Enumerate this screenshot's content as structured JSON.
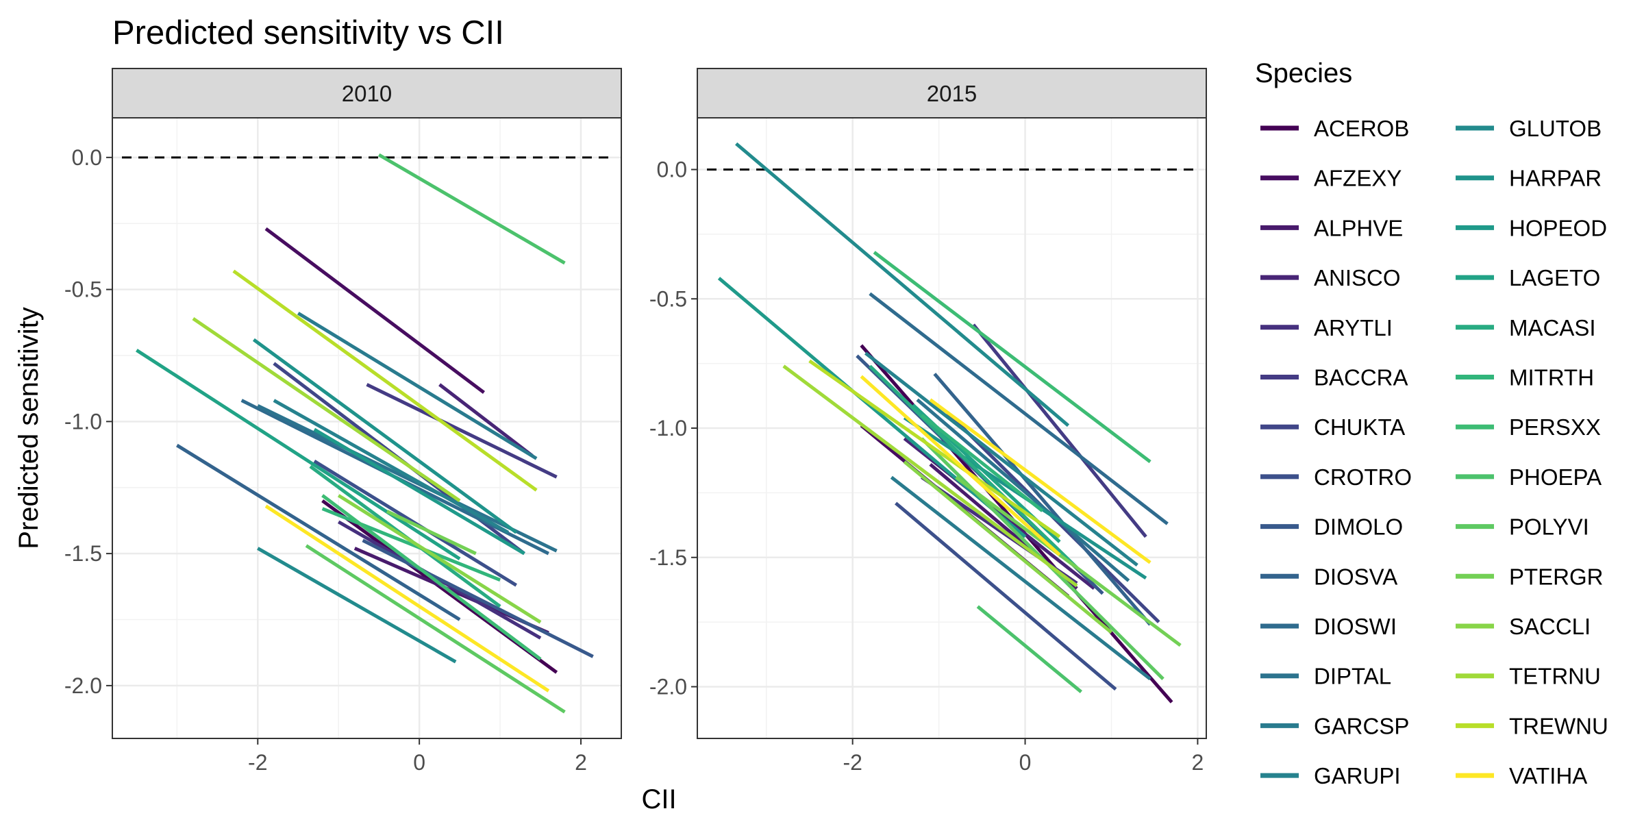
{
  "chart_data": {
    "type": "line",
    "title": "Predicted sensitivity vs CII",
    "xlabel": "CII",
    "ylabel": "Predicted sensitivity",
    "legend_title": "Species",
    "legend_position": "right",
    "grid": true,
    "reference_line": {
      "y": 0.0,
      "style": "dashed"
    },
    "x_ticks": [
      "-2",
      "0",
      "2"
    ],
    "species": [
      "ACEROB",
      "AFZEXY",
      "ALPHVE",
      "ANISCO",
      "ARYTLI",
      "BACCRA",
      "CHUKTA",
      "CROTRO",
      "DIMOLO",
      "DIOSVA",
      "DIOSWI",
      "DIPTAL",
      "GARCSP",
      "GARUPI",
      "GLUTOB",
      "HARPAR",
      "HOPEOD",
      "LAGETO",
      "MACASI",
      "MITRTH",
      "PERSXX",
      "PHOEPA",
      "POLYVI",
      "PTERGR",
      "SACCLI",
      "TETRNU",
      "TREWNU",
      "VATIHA"
    ],
    "colors": [
      "#440154",
      "#470d60",
      "#481a6c",
      "#482576",
      "#46307e",
      "#443b84",
      "#404688",
      "#3c508b",
      "#38598c",
      "#33638d",
      "#2f6b8e",
      "#2c738e",
      "#297b8e",
      "#26828e",
      "#228b8d",
      "#1f938b",
      "#1f9a8a",
      "#21a386",
      "#28ab82",
      "#31b57b",
      "#3dbc74",
      "#4cc26c",
      "#5ec962",
      "#73d055",
      "#88d548",
      "#a0da39",
      "#b8de29",
      "#fde725"
    ],
    "panels": [
      {
        "label": "2010",
        "xlim": [
          -3.8,
          2.5
        ],
        "ylim": [
          -2.2,
          0.15
        ],
        "y_ticks": [
          "0.0",
          "-0.5",
          "-1.0",
          "-1.5",
          "-2.0"
        ],
        "series": [
          {
            "name": "ACEROB",
            "segments": [
              [
                -1.2,
                -1.3,
                1.7,
                -1.95
              ]
            ]
          },
          {
            "name": "AFZEXY",
            "segments": [
              [
                -1.9,
                -0.27,
                0.8,
                -0.89
              ]
            ]
          },
          {
            "name": "ALPHVE",
            "segments": [
              [
                -0.8,
                -1.48,
                1.6,
                -1.8
              ]
            ]
          },
          {
            "name": "ANISCO",
            "segments": [
              [
                0.25,
                -0.86,
                1.4,
                -1.13
              ]
            ]
          },
          {
            "name": "ARYTLI",
            "segments": [
              [
                -1.0,
                -1.38,
                1.5,
                -1.82
              ]
            ]
          },
          {
            "name": "BACCRA",
            "segments": [
              [
                -0.65,
                -0.86,
                1.7,
                -1.21
              ]
            ]
          },
          {
            "name": "CHUKTA",
            "segments": [
              [
                -1.8,
                -0.78,
                1.3,
                -1.5
              ]
            ]
          },
          {
            "name": "CROTRO",
            "segments": [
              [
                -1.3,
                -1.15,
                1.2,
                -1.62
              ]
            ]
          },
          {
            "name": "DIMOLO",
            "segments": [
              [
                -0.7,
                -1.45,
                2.15,
                -1.89
              ]
            ]
          },
          {
            "name": "DIOSVA",
            "segments": [
              [
                -3.0,
                -1.09,
                0.5,
                -1.75
              ]
            ]
          },
          {
            "name": "DIOSWI",
            "segments": [
              [
                -2.2,
                -0.92,
                1.6,
                -1.5
              ]
            ]
          },
          {
            "name": "DIPTAL",
            "segments": [
              [
                -2.0,
                -0.94,
                1.7,
                -1.49
              ]
            ]
          },
          {
            "name": "GARCSP",
            "segments": [
              [
                -1.5,
                -0.59,
                1.45,
                -1.14
              ]
            ]
          },
          {
            "name": "GARUPI",
            "segments": [
              [
                -1.8,
                -0.92,
                1.1,
                -1.42
              ]
            ]
          },
          {
            "name": "GLUTOB",
            "segments": [
              [
                -2.0,
                -1.48,
                0.45,
                -1.91
              ]
            ]
          },
          {
            "name": "HARPAR",
            "segments": [
              [
                -2.05,
                -0.69,
                1.2,
                -1.42
              ]
            ]
          },
          {
            "name": "HOPEOD",
            "segments": [
              [
                -1.3,
                -1.03,
                1.3,
                -1.5
              ]
            ]
          },
          {
            "name": "LAGETO",
            "segments": [
              [
                -3.5,
                -0.73,
                0.5,
                -1.52
              ]
            ]
          },
          {
            "name": "MACASI",
            "segments": [
              [
                -1.35,
                -1.17,
                1.0,
                -1.7
              ]
            ]
          },
          {
            "name": "MITRTH",
            "segments": [
              [
                -1.2,
                -1.33,
                1.0,
                -1.6
              ]
            ]
          },
          {
            "name": "PERSXX",
            "segments": [
              [
                -1.2,
                -1.28,
                1.5,
                -1.9
              ]
            ]
          },
          {
            "name": "PHOEPA",
            "segments": [
              [
                -0.5,
                0.01,
                1.8,
                -0.4
              ]
            ]
          },
          {
            "name": "POLYVI",
            "segments": [
              [
                -1.4,
                -1.47,
                1.8,
                -2.1
              ]
            ]
          },
          {
            "name": "PTERGR",
            "segments": [
              [
                -0.4,
                -1.34,
                0.7,
                -1.5
              ]
            ]
          },
          {
            "name": "SACCLI",
            "segments": [
              [
                -1.0,
                -1.28,
                1.5,
                -1.76
              ]
            ]
          },
          {
            "name": "TETRNU",
            "segments": [
              [
                -2.8,
                -0.61,
                0.5,
                -1.3
              ]
            ]
          },
          {
            "name": "TREWNU",
            "segments": [
              [
                -2.3,
                -0.43,
                1.45,
                -1.26
              ]
            ]
          },
          {
            "name": "VATIHA",
            "segments": [
              [
                -1.9,
                -1.32,
                1.6,
                -2.02
              ]
            ]
          }
        ]
      },
      {
        "label": "2015",
        "xlim": [
          -3.8,
          2.1
        ],
        "ylim": [
          -2.2,
          0.2
        ],
        "y_ticks": [
          "0.0",
          "-0.5",
          "-1.0",
          "-1.5",
          "-2.0"
        ],
        "series": [
          {
            "name": "ACEROB",
            "segments": [
              [
                -1.9,
                -0.68,
                1.7,
                -2.06
              ]
            ]
          },
          {
            "name": "AFZEXY",
            "segments": [
              [
                -1.9,
                -0.99,
                0.5,
                -1.65
              ]
            ]
          },
          {
            "name": "ALPHVE",
            "segments": [
              [
                -1.1,
                -1.14,
                0.6,
                -1.62
              ]
            ]
          },
          {
            "name": "ANISCO",
            "segments": [
              [
                -1.4,
                -1.04,
                0.8,
                -1.62
              ]
            ]
          },
          {
            "name": "ARYTLI",
            "segments": [
              [
                -1.2,
                -1.19,
                0.6,
                -1.6
              ]
            ]
          },
          {
            "name": "BACCRA",
            "segments": [
              [
                -0.6,
                -0.6,
                1.4,
                -1.42
              ]
            ]
          },
          {
            "name": "CHUKTA",
            "segments": [
              [
                -0.9,
                -0.94,
                1.55,
                -1.75
              ]
            ]
          },
          {
            "name": "CROTRO",
            "segments": [
              [
                -1.5,
                -1.29,
                1.05,
                -2.01
              ]
            ]
          },
          {
            "name": "DIMOLO",
            "segments": [
              [
                -1.95,
                -0.72,
                0.9,
                -1.64
              ]
            ]
          },
          {
            "name": "DIOSVA",
            "segments": [
              [
                -1.05,
                -0.79,
                1.45,
                -1.76
              ]
            ]
          },
          {
            "name": "DIOSWI",
            "segments": [
              [
                -1.8,
                -0.48,
                1.65,
                -1.37
              ]
            ]
          },
          {
            "name": "DIPTAL",
            "segments": [
              [
                -1.25,
                -0.89,
                1.2,
                -1.59
              ]
            ]
          },
          {
            "name": "GARCSP",
            "segments": [
              [
                -1.55,
                -1.19,
                1.45,
                -1.97
              ]
            ]
          },
          {
            "name": "GARUPI",
            "segments": [
              [
                -1.85,
                -0.71,
                1.3,
                -1.53
              ]
            ]
          },
          {
            "name": "GLUTOB",
            "segments": [
              [
                -3.35,
                0.1,
                0.5,
                -0.99
              ]
            ]
          },
          {
            "name": "HARPAR",
            "segments": [
              [
                -1.4,
                -0.96,
                1.4,
                -1.58
              ]
            ]
          },
          {
            "name": "HOPEOD",
            "segments": [
              [
                -3.55,
                -0.42,
                0.0,
                -1.42
              ]
            ]
          },
          {
            "name": "LAGETO",
            "segments": [
              [
                -1.3,
                -0.91,
                0.4,
                -1.44
              ]
            ]
          },
          {
            "name": "MACASI",
            "segments": [
              [
                -1.8,
                -0.76,
                0.6,
                -1.54
              ]
            ]
          },
          {
            "name": "MITRTH",
            "segments": [
              [
                -1.2,
                -0.95,
                0.2,
                -1.32
              ]
            ]
          },
          {
            "name": "PERSXX",
            "segments": [
              [
                -1.75,
                -0.32,
                1.45,
                -1.13
              ]
            ]
          },
          {
            "name": "PHOEPA",
            "segments": [
              [
                -0.55,
                -1.69,
                0.65,
                -2.02
              ]
            ]
          },
          {
            "name": "POLYVI",
            "segments": [
              [
                -1.2,
                -1.04,
                1.6,
                -1.97
              ]
            ]
          },
          {
            "name": "PTERGR",
            "segments": [
              [
                -0.8,
                -1.19,
                1.8,
                -1.84
              ]
            ]
          },
          {
            "name": "SACCLI",
            "segments": [
              [
                -1.4,
                -1.13,
                1.0,
                -1.79
              ]
            ]
          },
          {
            "name": "TETRNU",
            "segments": [
              [
                -2.8,
                -0.76,
                0.6,
                -1.61
              ]
            ]
          },
          {
            "name": "TREWNU",
            "segments": [
              [
                -2.5,
                -0.74,
                0.4,
                -1.42
              ]
            ]
          },
          {
            "name": "VATIHA",
            "segments": [
              [
                -1.9,
                -0.8,
                0.4,
                -1.49
              ],
              [
                -1.1,
                -0.89,
                1.45,
                -1.52
              ]
            ]
          }
        ]
      }
    ]
  }
}
